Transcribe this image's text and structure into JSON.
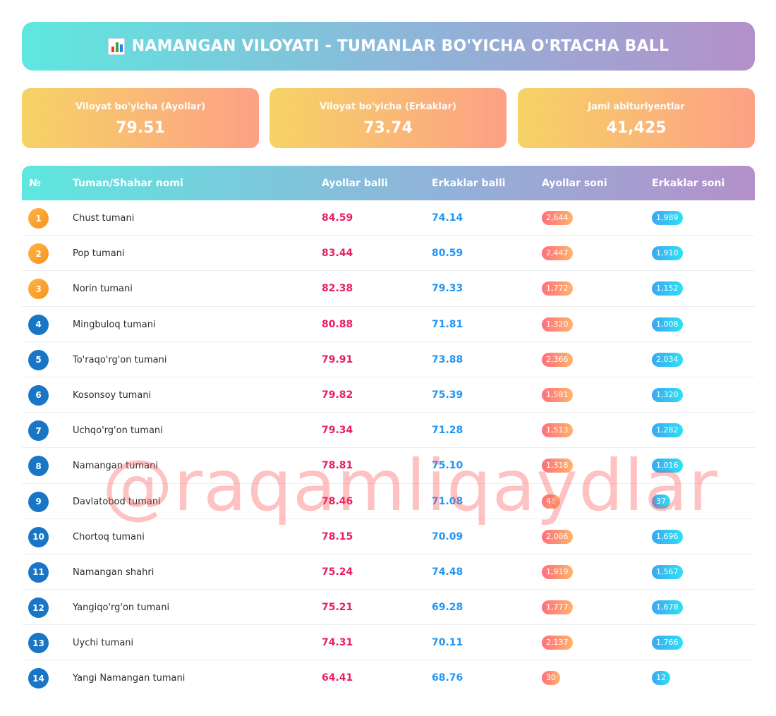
{
  "header": {
    "title": "NAMANGAN VILOYATI - TUMANLAR BO'YICHA O'RTACHA BALL",
    "icon": "bar-chart-icon"
  },
  "stats": [
    {
      "label": "Viloyat bo'yicha (Ayollar)",
      "value": "79.51"
    },
    {
      "label": "Viloyat bo'yicha (Erkaklar)",
      "value": "73.74"
    },
    {
      "label": "Jami abituriyentlar",
      "value": "41,425"
    }
  ],
  "table": {
    "columns": [
      "№",
      "Tuman/Shahar nomi",
      "Ayollar balli",
      "Erkaklar balli",
      "Ayollar soni",
      "Erkaklar soni"
    ],
    "rows": [
      {
        "rank": "1",
        "name": "Chust tumani",
        "f_score": "84.59",
        "m_score": "74.14",
        "f_count": "2,644",
        "m_count": "1,989"
      },
      {
        "rank": "2",
        "name": "Pop tumani",
        "f_score": "83.44",
        "m_score": "80.59",
        "f_count": "2,447",
        "m_count": "1,910"
      },
      {
        "rank": "3",
        "name": "Norin tumani",
        "f_score": "82.38",
        "m_score": "79.33",
        "f_count": "1,772",
        "m_count": "1,152"
      },
      {
        "rank": "4",
        "name": "Mingbuloq tumani",
        "f_score": "80.88",
        "m_score": "71.81",
        "f_count": "1,320",
        "m_count": "1,008"
      },
      {
        "rank": "5",
        "name": "To'raqo'rg'on tumani",
        "f_score": "79.91",
        "m_score": "73.88",
        "f_count": "2,366",
        "m_count": "2,034"
      },
      {
        "rank": "6",
        "name": "Kosonsoy tumani",
        "f_score": "79.82",
        "m_score": "75.39",
        "f_count": "1,581",
        "m_count": "1,320"
      },
      {
        "rank": "7",
        "name": "Uchqo'rg'on tumani",
        "f_score": "79.34",
        "m_score": "71.28",
        "f_count": "1,513",
        "m_count": "1,282"
      },
      {
        "rank": "8",
        "name": "Namangan tumani",
        "f_score": "78.81",
        "m_score": "75.10",
        "f_count": "1,318",
        "m_count": "1,016"
      },
      {
        "rank": "9",
        "name": "Davlatobod tumani",
        "f_score": "78.46",
        "m_score": "71.08",
        "f_count": "48",
        "m_count": "37"
      },
      {
        "rank": "10",
        "name": "Chortoq tumani",
        "f_score": "78.15",
        "m_score": "70.09",
        "f_count": "2,086",
        "m_count": "1,696"
      },
      {
        "rank": "11",
        "name": "Namangan shahri",
        "f_score": "75.24",
        "m_score": "74.48",
        "f_count": "1,919",
        "m_count": "1,567"
      },
      {
        "rank": "12",
        "name": "Yangiqo'rg'on tumani",
        "f_score": "75.21",
        "m_score": "69.28",
        "f_count": "1,777",
        "m_count": "1,678"
      },
      {
        "rank": "13",
        "name": "Uychi tumani",
        "f_score": "74.31",
        "m_score": "70.11",
        "f_count": "2,137",
        "m_count": "1,766"
      },
      {
        "rank": "14",
        "name": "Yangi Namangan tumani",
        "f_score": "64.41",
        "m_score": "68.76",
        "f_count": "30",
        "m_count": "12"
      }
    ]
  },
  "watermark": "@raqamliqaydlar",
  "colors": {
    "female": "#e91e63",
    "male": "#2196f3",
    "rank_top": "#f7941d",
    "rank_default": "#1976c6"
  }
}
